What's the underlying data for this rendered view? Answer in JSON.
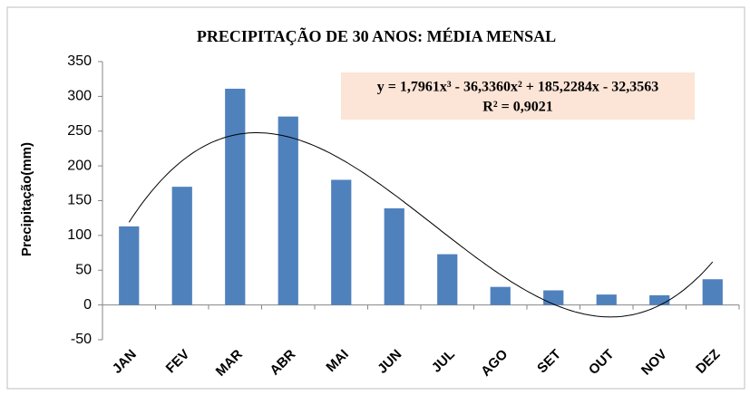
{
  "chart_data": {
    "type": "bar",
    "title": "PRECIPITAÇÃO DE 30 ANOS: MÉDIA MENSAL",
    "y_label": "Precipitação(mm)",
    "annotations": [
      "y = 1,7961x³ - 36,3360x² + 185,2284x - 32,3563",
      "R² = 0,9021"
    ],
    "categories": [
      "JAN",
      "FEV",
      "MAR",
      "ABR",
      "MAI",
      "JUN",
      "JUL",
      "AGO",
      "SET",
      "OUT",
      "NOV",
      "DEZ"
    ],
    "values": [
      113,
      170,
      311,
      271,
      180,
      139,
      73,
      26,
      21,
      15,
      14,
      37
    ],
    "color": "#4f81bd",
    "trendline": "polynomial",
    "trendline_order": 3,
    "ylim": [
      -50,
      350
    ],
    "yticks": [
      -50,
      0,
      50,
      100,
      150,
      200,
      250,
      300,
      350
    ],
    "grid": false
  }
}
